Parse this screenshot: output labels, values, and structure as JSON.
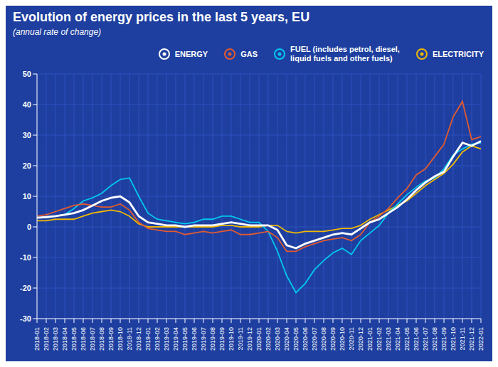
{
  "chart_data": {
    "type": "line",
    "title": "Evolution of energy prices in the last 5 years, EU",
    "subtitle": "(annual rate of change)",
    "categories": [
      "2018-01",
      "2018-02",
      "2018-03",
      "2018-04",
      "2018-05",
      "2018-06",
      "2018-07",
      "2018-08",
      "2018-09",
      "2018-10",
      "2018-11",
      "2018-12",
      "2019-01",
      "2019-02",
      "2019-03",
      "2019-04",
      "2019-05",
      "2019-06",
      "2019-07",
      "2019-08",
      "2019-09",
      "2019-10",
      "2019-11",
      "2019-12",
      "2020-01",
      "2020-02",
      "2020-03",
      "2020-04",
      "2020-05",
      "2020-06",
      "2020-07",
      "2020-08",
      "2020-09",
      "2020-10",
      "2020-11",
      "2020-12",
      "2021-01",
      "2021-02",
      "2021-03",
      "2021-04",
      "2021-05",
      "2021-06",
      "2021-07",
      "2021-08",
      "2021-09",
      "2021-10",
      "2021-11",
      "2021-12",
      "2022-01"
    ],
    "series": [
      {
        "name": "ENERGY",
        "color": "#ffffff",
        "values": [
          3.0,
          3.2,
          3.5,
          4.0,
          4.5,
          5.5,
          7.0,
          8.5,
          9.5,
          10.0,
          8.0,
          3.5,
          1.5,
          1.0,
          0.5,
          0.5,
          0.0,
          0.5,
          0.5,
          0.5,
          1.0,
          1.5,
          1.0,
          0.5,
          0.5,
          0.5,
          -1.0,
          -6.0,
          -7.0,
          -5.5,
          -4.5,
          -3.5,
          -2.5,
          -2.0,
          -2.5,
          -0.5,
          1.5,
          2.5,
          4.5,
          6.5,
          9.0,
          12.0,
          14.5,
          16.5,
          18.0,
          23.0,
          27.5,
          26.5,
          28.0
        ]
      },
      {
        "name": "GAS",
        "color": "#e05a30",
        "values": [
          3.5,
          4.0,
          5.0,
          6.0,
          7.0,
          7.5,
          7.0,
          6.5,
          6.5,
          7.5,
          5.5,
          1.5,
          -0.5,
          -1.0,
          -1.5,
          -1.5,
          -2.5,
          -2.0,
          -1.5,
          -2.0,
          -1.5,
          -1.0,
          -2.5,
          -2.5,
          -2.0,
          -1.5,
          -3.5,
          -8.0,
          -8.0,
          -6.5,
          -5.5,
          -4.5,
          -4.0,
          -3.5,
          -4.5,
          -2.5,
          1.5,
          3.5,
          6.0,
          9.5,
          12.5,
          17.0,
          19.0,
          23.0,
          27.0,
          36.0,
          41.0,
          28.5,
          29.5
        ]
      },
      {
        "name": "FUEL (includes petrol, diesel,\nliquid fuels and other fuels)",
        "color": "#00c8ee",
        "values": [
          3.0,
          3.0,
          3.5,
          4.0,
          6.0,
          8.5,
          9.5,
          11.0,
          13.5,
          15.5,
          16.0,
          10.0,
          4.5,
          2.5,
          2.0,
          1.5,
          1.0,
          1.5,
          2.5,
          2.5,
          3.5,
          3.5,
          2.5,
          1.5,
          1.5,
          -1.5,
          -8.0,
          -16.0,
          -21.5,
          -18.5,
          -14.0,
          -11.0,
          -8.5,
          -7.0,
          -9.0,
          -4.5,
          -2.0,
          0.5,
          4.5,
          7.5,
          10.5,
          13.0,
          15.0,
          16.0,
          19.0,
          23.5,
          25.5,
          27.0,
          27.5
        ]
      },
      {
        "name": "ELECTRICITY",
        "color": "#f0b800",
        "values": [
          2.0,
          2.0,
          2.5,
          2.5,
          2.5,
          3.5,
          4.5,
          5.0,
          5.5,
          5.0,
          3.5,
          1.0,
          0.0,
          0.0,
          0.0,
          0.0,
          0.0,
          0.0,
          0.0,
          0.0,
          0.5,
          0.5,
          0.0,
          0.0,
          0.0,
          0.5,
          0.5,
          -1.5,
          -2.0,
          -1.5,
          -1.5,
          -1.5,
          -1.0,
          -0.5,
          -0.5,
          0.5,
          2.5,
          4.0,
          5.5,
          7.0,
          8.5,
          11.0,
          13.5,
          15.5,
          17.5,
          20.5,
          24.5,
          26.5,
          25.5
        ]
      }
    ],
    "ylim": [
      -30,
      50
    ],
    "yticks": [
      -30,
      -20,
      -10,
      0,
      10,
      20,
      30,
      40,
      50
    ],
    "grid": true,
    "legend": "top"
  }
}
